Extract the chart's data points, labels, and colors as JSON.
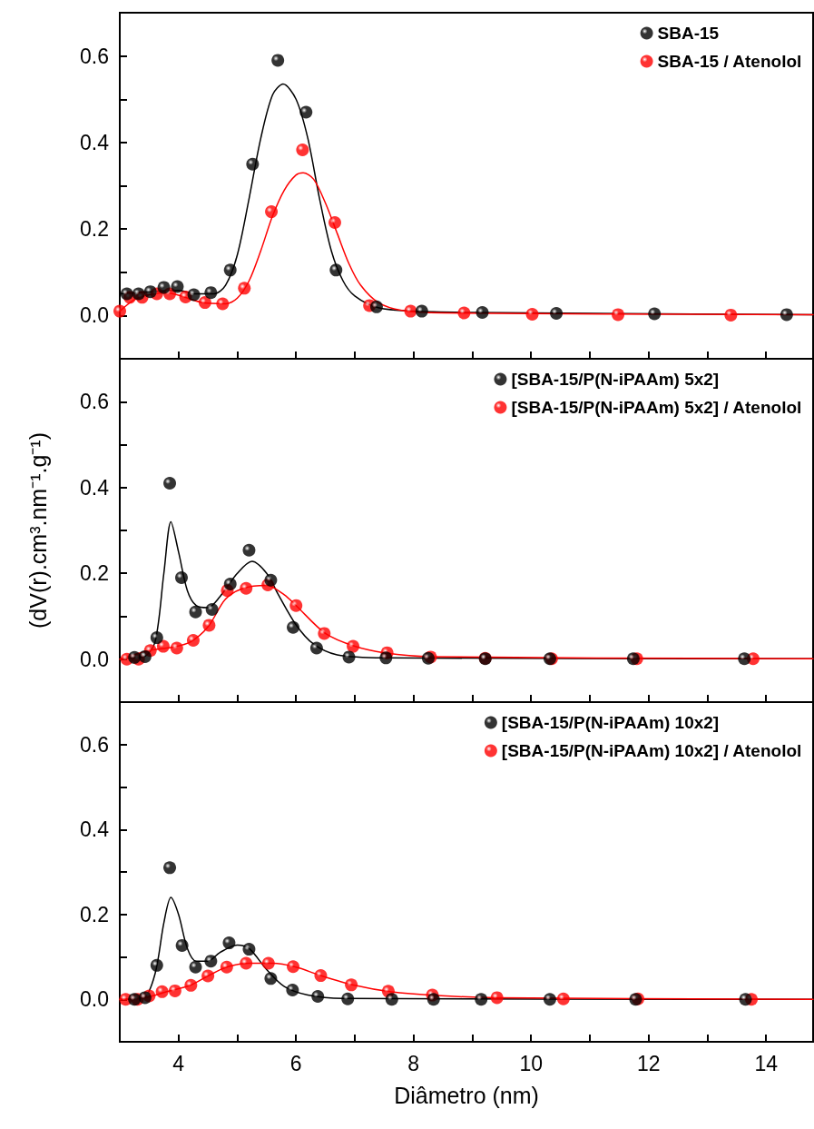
{
  "chart_data": [
    {
      "type": "scatter",
      "xlim": [
        3,
        14.8
      ],
      "ylim": [
        -0.1,
        0.7
      ],
      "tick_labels": "y",
      "legend": "top right",
      "marker": "circle",
      "grid": false,
      "xticks": [
        {
          "value": 3,
          "label": null
        },
        4,
        {
          "value": 5,
          "label": null
        },
        6,
        {
          "value": 7,
          "label": null
        },
        8,
        {
          "value": 9,
          "label": null
        },
        10,
        {
          "value": 11,
          "label": null
        },
        12,
        {
          "value": 13,
          "label": null
        },
        14
      ],
      "yticks": [
        {
          "value": 0,
          "label": "0.0"
        },
        {
          "value": 0.1,
          "label": null
        },
        0.2,
        {
          "value": 0.3,
          "label": null
        },
        0.4,
        {
          "value": 0.5,
          "label": null
        },
        0.6
      ],
      "series": [
        {
          "type": "line",
          "marker": "none",
          "color": "#000000",
          "x": [
            3.0,
            3.5,
            4.0,
            4.3,
            4.6,
            4.8,
            5.0,
            5.2,
            5.4,
            5.6,
            5.78,
            6.0,
            6.2,
            6.4,
            6.6,
            6.8,
            7.0,
            7.4,
            8.0,
            9.0,
            14.8
          ],
          "values": [
            0.05,
            0.055,
            0.058,
            0.05,
            0.05,
            0.07,
            0.14,
            0.27,
            0.41,
            0.51,
            0.535,
            0.5,
            0.41,
            0.27,
            0.15,
            0.08,
            0.045,
            0.018,
            0.01,
            0.007,
            0.002
          ]
        },
        {
          "type": "line",
          "marker": "none",
          "color": "#ff0000",
          "x": [
            3.0,
            3.3,
            3.8,
            4.4,
            4.8,
            5.0,
            5.2,
            5.4,
            5.6,
            5.8,
            6.0,
            6.12,
            6.3,
            6.5,
            6.7,
            6.9,
            7.1,
            7.4,
            7.8,
            8.5,
            14.8
          ],
          "values": [
            0.01,
            0.04,
            0.052,
            0.03,
            0.027,
            0.04,
            0.08,
            0.15,
            0.23,
            0.29,
            0.325,
            0.33,
            0.315,
            0.26,
            0.19,
            0.12,
            0.07,
            0.03,
            0.012,
            0.006,
            0.002
          ]
        },
        {
          "name": "SBA-15",
          "color": "#000000",
          "x": [
            3.12,
            3.32,
            3.52,
            3.75,
            3.98,
            4.26,
            4.55,
            4.88,
            5.26,
            5.69,
            6.17,
            6.68,
            7.37,
            8.14,
            9.17,
            10.43,
            12.1,
            14.35
          ],
          "values": [
            0.05,
            0.05,
            0.055,
            0.065,
            0.067,
            0.048,
            0.053,
            0.105,
            0.35,
            0.59,
            0.47,
            0.105,
            0.02,
            0.01,
            0.007,
            0.005,
            0.004,
            0.002
          ]
        },
        {
          "name": "SBA-15 / Atenolol",
          "color": "#ff0000",
          "x": [
            3.0,
            3.17,
            3.38,
            3.63,
            3.85,
            4.12,
            4.45,
            4.75,
            5.12,
            5.58,
            6.11,
            6.66,
            7.25,
            7.95,
            8.86,
            10.02,
            11.48,
            13.4
          ],
          "values": [
            0.01,
            0.042,
            0.042,
            0.05,
            0.05,
            0.043,
            0.03,
            0.027,
            0.063,
            0.24,
            0.383,
            0.215,
            0.023,
            0.01,
            0.006,
            0.003,
            0.002,
            0.001
          ]
        }
      ]
    },
    {
      "type": "scatter",
      "xlim": [
        3,
        14.8
      ],
      "ylim": [
        -0.1,
        0.7
      ],
      "tick_labels": "y",
      "legend": "top right",
      "marker": "circle",
      "grid": false,
      "ylabel": "(dV(r).cm³.nm⁻¹.g⁻¹)",
      "xticks": [
        {
          "value": 3,
          "label": null
        },
        4,
        {
          "value": 5,
          "label": null
        },
        6,
        {
          "value": 7,
          "label": null
        },
        8,
        {
          "value": 9,
          "label": null
        },
        10,
        {
          "value": 11,
          "label": null
        },
        12,
        {
          "value": 13,
          "label": null
        },
        14
      ],
      "yticks": [
        {
          "value": 0,
          "label": "0.0"
        },
        {
          "value": 0.1,
          "label": null
        },
        0.2,
        {
          "value": 0.3,
          "label": null
        },
        0.4,
        {
          "value": 0.5,
          "label": null
        },
        0.6
      ],
      "series": [
        {
          "type": "line",
          "marker": "none",
          "color": "#000000",
          "x": [
            3.0,
            3.4,
            3.6,
            3.75,
            3.87,
            4.0,
            4.15,
            4.3,
            4.5,
            4.7,
            5.0,
            5.25,
            5.5,
            5.7,
            6.0,
            6.3,
            6.7,
            7.5,
            14.8
          ],
          "values": [
            0.002,
            0.005,
            0.04,
            0.2,
            0.32,
            0.25,
            0.16,
            0.125,
            0.12,
            0.145,
            0.2,
            0.228,
            0.2,
            0.15,
            0.08,
            0.035,
            0.01,
            0.003,
            0.001
          ]
        },
        {
          "type": "line",
          "marker": "none",
          "color": "#ff0000",
          "x": [
            3.0,
            3.5,
            3.9,
            4.2,
            4.5,
            4.8,
            5.1,
            5.5,
            5.8,
            6.0,
            6.5,
            7.0,
            7.5,
            8.3,
            14.8
          ],
          "values": [
            0,
            0.02,
            0.028,
            0.04,
            0.075,
            0.14,
            0.165,
            0.172,
            0.15,
            0.125,
            0.06,
            0.03,
            0.015,
            0.006,
            0.001
          ]
        },
        {
          "name": "[SBA-15/P(N-iPAAm) 5x2]",
          "color": "#000000",
          "x": [
            3.25,
            3.43,
            3.63,
            3.85,
            4.05,
            4.29,
            4.57,
            4.88,
            5.2,
            5.57,
            5.95,
            6.35,
            6.9,
            7.53,
            8.25,
            9.22,
            10.32,
            11.74,
            13.63
          ],
          "values": [
            0.004,
            0.006,
            0.05,
            0.41,
            0.19,
            0.11,
            0.116,
            0.175,
            0.254,
            0.184,
            0.074,
            0.026,
            0.005,
            0.003,
            0.002,
            0.001,
            0.001,
            0.001,
            0.001
          ]
        },
        {
          "name": "[SBA-15/P(N-iPAAm) 5x2] / Atenolol",
          "color": "#ff0000",
          "x": [
            3.12,
            3.32,
            3.52,
            3.74,
            3.97,
            4.25,
            4.52,
            4.83,
            5.15,
            5.52,
            6.0,
            6.48,
            6.97,
            7.55,
            8.29,
            9.22,
            10.35,
            11.8,
            13.78
          ],
          "values": [
            0,
            0,
            0.02,
            0.03,
            0.026,
            0.044,
            0.079,
            0.16,
            0.165,
            0.173,
            0.125,
            0.06,
            0.03,
            0.015,
            0.005,
            0.002,
            0.001,
            0.001,
            0.001
          ]
        }
      ]
    },
    {
      "type": "scatter",
      "xlim": [
        3,
        14.8
      ],
      "ylim": [
        -0.1,
        0.7
      ],
      "legend": "top right",
      "marker": "circle",
      "grid": false,
      "xlabel": "Diâmetro (nm)",
      "xticks": [
        {
          "value": 3,
          "label": null
        },
        4,
        {
          "value": 5,
          "label": null
        },
        6,
        {
          "value": 7,
          "label": null
        },
        8,
        {
          "value": 9,
          "label": null
        },
        10,
        {
          "value": 11,
          "label": null
        },
        12,
        {
          "value": 13,
          "label": null
        },
        14
      ],
      "yticks": [
        {
          "value": 0,
          "label": "0.0"
        },
        {
          "value": 0.1,
          "label": null
        },
        0.2,
        {
          "value": 0.3,
          "label": null
        },
        0.4,
        {
          "value": 0.5,
          "label": null
        },
        0.6
      ],
      "series": [
        {
          "type": "line",
          "marker": "none",
          "color": "#000000",
          "x": [
            3.0,
            3.4,
            3.6,
            3.75,
            3.87,
            4.0,
            4.15,
            4.3,
            4.5,
            4.7,
            5.0,
            5.2,
            5.5,
            5.8,
            6.2,
            6.8,
            14.8
          ],
          "values": [
            0,
            0.003,
            0.06,
            0.18,
            0.24,
            0.2,
            0.12,
            0.09,
            0.09,
            0.11,
            0.128,
            0.12,
            0.07,
            0.03,
            0.01,
            0.002,
            0
          ]
        },
        {
          "type": "line",
          "marker": "none",
          "color": "#ff0000",
          "x": [
            3.0,
            3.4,
            3.8,
            4.2,
            4.5,
            4.8,
            5.2,
            5.6,
            6.0,
            6.4,
            7.0,
            7.6,
            8.4,
            9.4,
            14.8
          ],
          "values": [
            0,
            0.003,
            0.018,
            0.033,
            0.055,
            0.075,
            0.085,
            0.085,
            0.076,
            0.057,
            0.033,
            0.018,
            0.009,
            0.004,
            0
          ]
        },
        {
          "name": "[SBA-15/P(N-iPAAm) 10x2]",
          "color": "#000000",
          "x": [
            3.25,
            3.43,
            3.63,
            3.85,
            4.06,
            4.29,
            4.55,
            4.86,
            5.2,
            5.57,
            5.94,
            6.37,
            6.88,
            7.63,
            8.34,
            9.15,
            10.32,
            11.78,
            13.65
          ],
          "values": [
            0,
            0.004,
            0.08,
            0.31,
            0.127,
            0.076,
            0.09,
            0.133,
            0.118,
            0.049,
            0.022,
            0.007,
            0.001,
            0,
            0,
            0,
            0,
            0,
            0
          ]
        },
        {
          "name": "[SBA-15/P(N-iPAAm) 10x2] / Atenolol",
          "color": "#ff0000",
          "x": [
            3.1,
            3.3,
            3.5,
            3.72,
            3.94,
            4.21,
            4.5,
            4.82,
            5.15,
            5.53,
            5.95,
            6.42,
            6.94,
            7.57,
            8.32,
            9.42,
            10.55,
            11.82,
            13.75
          ],
          "values": [
            0,
            0,
            0.008,
            0.018,
            0.02,
            0.033,
            0.055,
            0.076,
            0.085,
            0.085,
            0.077,
            0.056,
            0.034,
            0.019,
            0.01,
            0.004,
            0.001,
            0.001,
            0
          ]
        }
      ]
    }
  ]
}
